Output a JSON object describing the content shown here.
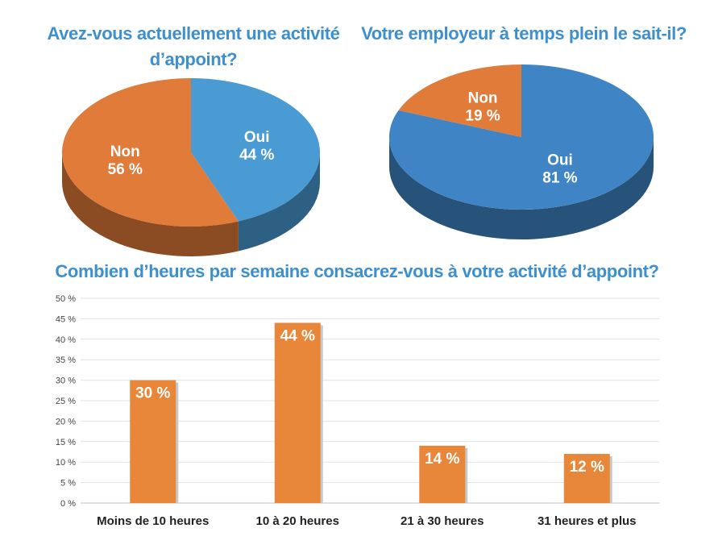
{
  "chart_data": [
    {
      "type": "pie",
      "title": "Avez-vous actuellement une activité d’appoint?",
      "categories": [
        "Oui",
        "Non"
      ],
      "values": [
        44,
        56
      ],
      "labels": [
        "44 %",
        "56 %"
      ],
      "colors": [
        "#4a9bd4",
        "#e07b3a"
      ]
    },
    {
      "type": "pie",
      "title": "Votre employeur à temps plein le sait-il?",
      "categories": [
        "Oui",
        "Non"
      ],
      "values": [
        81,
        19
      ],
      "labels": [
        "81 %",
        "19 %"
      ],
      "colors": [
        "#3f84c4",
        "#e07b3a"
      ]
    },
    {
      "type": "bar",
      "title": "Combien d’heures par semaine consacrez-vous à votre activité d’appoint?",
      "categories": [
        "Moins de 10 heures",
        "10 à 20 heures",
        "21 à 30 heures",
        "31 heures et plus"
      ],
      "values": [
        30,
        44,
        14,
        12
      ],
      "labels": [
        "30 %",
        "44 %",
        "14 %",
        "12 %"
      ],
      "ylim": [
        0,
        50
      ],
      "yticks": [
        "0 %",
        "5 %",
        "10 %",
        "15 %",
        "20 %",
        "25 %",
        "30 %",
        "35 %",
        "40 %",
        "45 %",
        "50 %"
      ],
      "grid": true,
      "bar_color": "#e8873a"
    }
  ]
}
